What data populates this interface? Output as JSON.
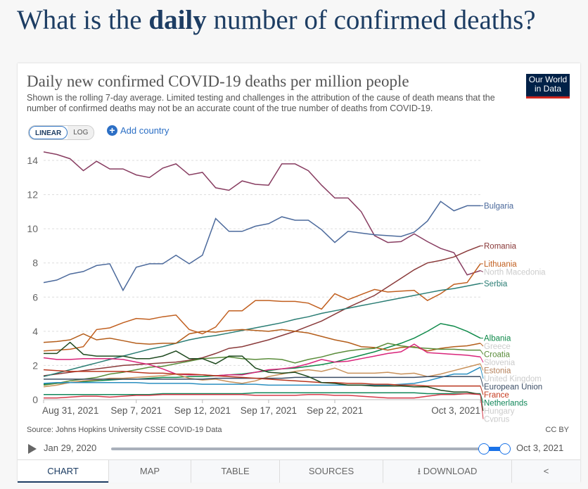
{
  "page": {
    "heading_pre": "What is the ",
    "heading_bold": "daily",
    "heading_post": " number of confirmed deaths?"
  },
  "card": {
    "title": "Daily new confirmed COVID-19 deaths per million people",
    "subtitle": "Shown is the rolling 7-day average. Limited testing and challenges in the attribution of the cause of death means that the number of confirmed deaths may not be an accurate count of the true number of deaths from COVID-19.",
    "logo_line1": "Our World",
    "logo_line2": "in Data",
    "scale_linear": "LINEAR",
    "scale_log": "LOG",
    "add_country": "Add country",
    "source": "Source: Johns Hopkins University CSSE COVID-19 Data",
    "license": "CC BY",
    "timeline": {
      "start": "Jan 29, 2020",
      "end": "Oct 3, 2021",
      "play_icon": "play-icon"
    },
    "tabs": [
      "CHART",
      "MAP",
      "TABLE",
      "SOURCES",
      "DOWNLOAD",
      ""
    ],
    "active_tab": "CHART"
  },
  "chart_data": {
    "type": "line",
    "title": "Daily new confirmed COVID-19 deaths per million people",
    "xlabel": "",
    "ylabel": "",
    "ylim": [
      0,
      14
    ],
    "yticks": [
      0,
      2,
      4,
      6,
      8,
      10,
      12,
      14
    ],
    "xticks": [
      {
        "label": "Aug 31, 2021",
        "day": 0
      },
      {
        "label": "Sep 7, 2021",
        "day": 7
      },
      {
        "label": "Sep 12, 2021",
        "day": 12
      },
      {
        "label": "Sep 17, 2021",
        "day": 17
      },
      {
        "label": "Sep 22, 2021",
        "day": 22
      },
      {
        "label": "Oct 3, 2021",
        "day": 33
      }
    ],
    "x_range_days": [
      0,
      33
    ],
    "grid": "horizontal-dashed",
    "legend": "right-end-labels",
    "series": [
      {
        "name": "North Macedonia",
        "color": "#883d61",
        "label_color": "#cccccc",
        "values": [
          14.5,
          14.35,
          14.1,
          13.4,
          13.95,
          13.5,
          13.5,
          13.15,
          13.0,
          13.55,
          13.8,
          13.15,
          13.3,
          12.4,
          12.25,
          12.8,
          12.6,
          12.55,
          13.8,
          13.8,
          13.4,
          12.55,
          11.8,
          11.8,
          11.0,
          9.6,
          9.2,
          9.25,
          9.7,
          9.25,
          8.85,
          8.6,
          7.3,
          7.55
        ]
      },
      {
        "name": "Bulgaria",
        "color": "#4c6a9c",
        "label_color": "#4c6a9c",
        "values": [
          6.85,
          7.0,
          7.35,
          7.5,
          7.85,
          7.95,
          6.4,
          7.75,
          7.95,
          7.95,
          8.45,
          7.95,
          8.45,
          10.6,
          9.85,
          9.85,
          10.15,
          10.3,
          10.7,
          10.5,
          10.5,
          9.95,
          9.2,
          9.85,
          9.75,
          9.65,
          9.6,
          9.55,
          9.8,
          10.45,
          11.6,
          11.05,
          11.35,
          11.35
        ]
      },
      {
        "name": "Romania",
        "color": "#8a3a3a",
        "label_color": "#8a3a3a",
        "values": [
          1.4,
          1.5,
          1.6,
          1.7,
          1.8,
          1.9,
          2.0,
          2.05,
          2.1,
          2.15,
          2.2,
          2.3,
          2.45,
          2.7,
          3.0,
          3.1,
          3.3,
          3.5,
          3.75,
          4.0,
          4.3,
          4.6,
          5.0,
          5.4,
          5.75,
          6.1,
          6.6,
          7.1,
          7.6,
          8.0,
          8.15,
          8.35,
          8.7,
          9.0
        ]
      },
      {
        "name": "Lithuania",
        "color": "#c15f1f",
        "label_color": "#c15f1f",
        "values": [
          2.85,
          2.9,
          2.95,
          3.1,
          4.1,
          4.2,
          4.5,
          4.75,
          4.7,
          4.85,
          4.95,
          4.1,
          3.85,
          4.25,
          5.2,
          5.2,
          5.8,
          5.8,
          5.75,
          5.75,
          5.65,
          5.3,
          6.2,
          5.85,
          6.15,
          6.45,
          6.3,
          6.35,
          6.4,
          5.8,
          6.2,
          6.75,
          6.85,
          7.95
        ]
      },
      {
        "name": "Serbia",
        "color": "#2a7d74",
        "label_color": "#2a7d74",
        "values": [
          1.35,
          1.55,
          1.75,
          1.95,
          2.15,
          2.35,
          2.55,
          2.75,
          2.95,
          3.1,
          3.3,
          3.5,
          3.65,
          3.75,
          3.9,
          4.05,
          4.2,
          4.35,
          4.5,
          4.7,
          4.85,
          5.05,
          5.2,
          5.35,
          5.5,
          5.65,
          5.8,
          5.95,
          6.1,
          6.25,
          6.4,
          6.5,
          6.65,
          6.8
        ]
      },
      {
        "name": "Albania",
        "color": "#0f8a4a",
        "label_color": "#0f8a4a",
        "values": [
          0.9,
          0.95,
          1.0,
          1.05,
          1.1,
          1.15,
          1.2,
          1.2,
          1.25,
          1.3,
          1.3,
          1.35,
          1.35,
          1.4,
          1.45,
          1.5,
          1.6,
          1.7,
          1.8,
          1.85,
          1.95,
          2.05,
          2.2,
          2.4,
          2.6,
          2.8,
          3.05,
          3.3,
          3.6,
          4.0,
          4.45,
          4.3,
          4.0,
          3.6
        ]
      },
      {
        "name": "Greece",
        "color": "#b45d1a",
        "label_color": "#cccccc",
        "values": [
          3.35,
          3.4,
          3.5,
          3.85,
          3.5,
          3.6,
          3.45,
          3.3,
          3.25,
          3.3,
          3.3,
          3.85,
          4.0,
          3.95,
          4.05,
          4.1,
          4.05,
          4.0,
          4.1,
          4.0,
          3.9,
          3.7,
          3.5,
          3.35,
          3.1,
          3.05,
          2.9,
          3.05,
          3.1,
          2.85,
          3.0,
          3.1,
          3.15,
          3.3
        ]
      },
      {
        "name": "Croatia",
        "color": "#5a8c3a",
        "label_color": "#5a8c3a",
        "values": [
          0.85,
          0.95,
          1.1,
          1.2,
          1.3,
          1.5,
          1.6,
          1.75,
          1.9,
          1.95,
          2.1,
          2.25,
          2.4,
          2.45,
          2.5,
          2.4,
          2.35,
          2.4,
          2.35,
          2.15,
          2.35,
          2.5,
          2.7,
          2.85,
          2.95,
          3.0,
          3.3,
          3.15,
          3.05,
          3.0,
          2.95,
          2.95,
          2.9,
          2.9
        ]
      },
      {
        "name": "Slovenia",
        "color": "#d9247a",
        "label_color": "#cccccc",
        "values": [
          2.45,
          2.35,
          2.35,
          2.4,
          2.4,
          2.4,
          2.35,
          2.2,
          2.05,
          1.8,
          1.5,
          1.45,
          1.45,
          1.4,
          1.45,
          1.45,
          1.6,
          1.75,
          1.8,
          1.9,
          2.1,
          2.35,
          2.2,
          2.25,
          2.4,
          2.55,
          2.7,
          2.8,
          3.25,
          2.75,
          2.7,
          2.65,
          2.6,
          2.5
        ]
      },
      {
        "name": "Estonia",
        "color": "#c8915a",
        "label_color": "#b5805a",
        "values": [
          0.75,
          0.85,
          1.0,
          1.1,
          1.15,
          1.25,
          1.25,
          1.3,
          1.35,
          1.4,
          1.5,
          1.25,
          1.15,
          1.2,
          1.05,
          0.95,
          1.1,
          1.35,
          1.5,
          1.65,
          1.75,
          1.65,
          1.85,
          1.55,
          1.55,
          1.55,
          1.6,
          1.5,
          1.55,
          1.35,
          1.5,
          1.7,
          1.9,
          2.1
        ]
      },
      {
        "name": "United Kingdom",
        "color": "#2b8fc0",
        "label_color": "#cccccc",
        "values": [
          0.95,
          1.0,
          1.0,
          1.0,
          1.0,
          1.0,
          1.0,
          1.0,
          0.95,
          0.95,
          0.95,
          0.95,
          0.9,
          0.9,
          0.9,
          0.9,
          0.9,
          0.85,
          0.85,
          0.85,
          0.85,
          0.85,
          0.85,
          0.85,
          0.85,
          0.85,
          0.85,
          0.9,
          0.95,
          1.1,
          1.3,
          1.5,
          1.5,
          1.9
        ]
      },
      {
        "name": "European Union",
        "color": "#3c4e66",
        "label_color": "#3c4e66",
        "values": [
          1.2,
          1.2,
          1.2,
          1.2,
          1.2,
          1.2,
          1.2,
          1.2,
          1.2,
          1.2,
          1.2,
          1.2,
          1.2,
          1.25,
          1.25,
          1.25,
          1.25,
          1.25,
          1.25,
          1.3,
          1.3,
          1.3,
          1.3,
          1.3,
          1.3,
          1.3,
          1.3,
          1.3,
          1.3,
          1.35,
          1.35,
          1.35,
          1.35,
          1.35
        ]
      },
      {
        "name": "France",
        "color": "#b9361e",
        "label_color": "#c43b1e",
        "values": [
          1.75,
          1.7,
          1.65,
          1.65,
          1.65,
          1.65,
          1.65,
          1.6,
          1.55,
          1.55,
          1.5,
          1.5,
          1.45,
          1.4,
          1.35,
          1.3,
          1.25,
          1.2,
          1.15,
          1.1,
          1.05,
          1.0,
          1.0,
          0.95,
          0.95,
          0.9,
          0.9,
          0.85,
          0.85,
          0.8,
          0.8,
          0.8,
          0.8,
          0.8
        ]
      },
      {
        "name": "Netherlands",
        "color": "#12875a",
        "label_color": "#12875a",
        "values": [
          0.3,
          0.3,
          0.3,
          0.3,
          0.3,
          0.3,
          0.3,
          0.3,
          0.3,
          0.35,
          0.35,
          0.35,
          0.35,
          0.35,
          0.35,
          0.35,
          0.4,
          0.4,
          0.4,
          0.4,
          0.4,
          0.4,
          0.4,
          0.4,
          0.4,
          0.4,
          0.4,
          0.4,
          0.4,
          0.35,
          0.35,
          0.35,
          0.35,
          0.35
        ]
      },
      {
        "name": "Hungary",
        "color": "#1f4a1f",
        "label_color": "#cccccc",
        "values": [
          2.7,
          2.7,
          3.35,
          2.65,
          2.55,
          2.55,
          2.55,
          2.4,
          2.4,
          2.55,
          2.85,
          2.4,
          2.4,
          2.1,
          2.55,
          2.55,
          1.85,
          1.6,
          1.55,
          1.6,
          1.35,
          1.0,
          0.95,
          0.85,
          0.85,
          0.8,
          0.8,
          0.8,
          0.75,
          0.75,
          0.55,
          0.45,
          0.45,
          0.3
        ]
      },
      {
        "name": "Cyprus",
        "color": "#d43a4a",
        "label_color": "#cccccc",
        "values": [
          0.1,
          0.1,
          0.15,
          0.2,
          0.2,
          0.15,
          0.2,
          0.25,
          0.25,
          0.3,
          0.3,
          0.3,
          0.3,
          0.3,
          0.3,
          0.3,
          0.25,
          0.25,
          0.25,
          0.25,
          0.3,
          0.3,
          0.25,
          0.25,
          0.2,
          0.15,
          0.1,
          0.1,
          0.1,
          0.2,
          0.3,
          0.3,
          0.35,
          0.3
        ]
      }
    ]
  }
}
